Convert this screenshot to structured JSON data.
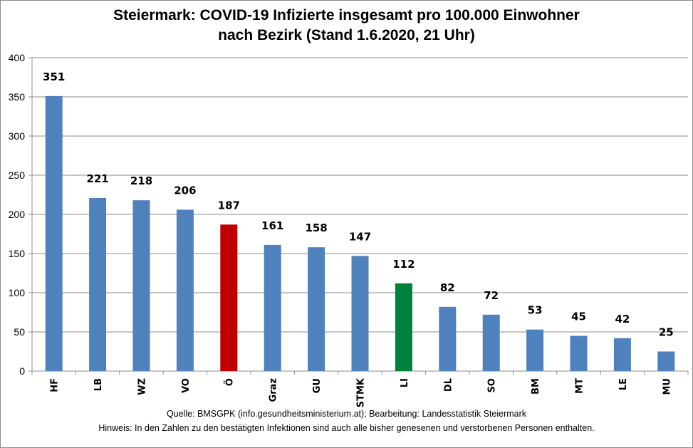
{
  "chart_data": {
    "type": "bar",
    "title_line1": "Steiermark: COVID-19 Infizierte insgesamt pro 100.000 Einwohner",
    "title_line2": "nach Bezirk (Stand 1.6.2020, 21 Uhr)",
    "xlabel": "",
    "ylabel": "",
    "ylim": [
      0,
      400
    ],
    "yticks": [
      0,
      50,
      100,
      150,
      200,
      250,
      300,
      350,
      400
    ],
    "grid": true,
    "categories": [
      "HF",
      "LB",
      "WZ",
      "VO",
      "Ö",
      "Graz",
      "GU",
      "STMK",
      "LI",
      "DL",
      "SO",
      "BM",
      "MT",
      "LE",
      "MU"
    ],
    "values": [
      351,
      221,
      218,
      206,
      187,
      161,
      158,
      147,
      112,
      82,
      72,
      53,
      45,
      42,
      25
    ],
    "colors": [
      "#4f81bd",
      "#4f81bd",
      "#4f81bd",
      "#4f81bd",
      "#c00000",
      "#4f81bd",
      "#4f81bd",
      "#4f81bd",
      "#00803c",
      "#4f81bd",
      "#4f81bd",
      "#4f81bd",
      "#4f81bd",
      "#4f81bd",
      "#4f81bd"
    ],
    "data_labels_shown": true
  },
  "footer": {
    "source": "Quelle: BMSGPK (info.gesundheitsministerium.at); Bearbeitung: Landesstatistik Steiermark",
    "note": "Hinweis: In den Zahlen zu den bestätigten Infektionen sind auch alle bisher genesenen und verstorbenen Personen enthalten."
  }
}
